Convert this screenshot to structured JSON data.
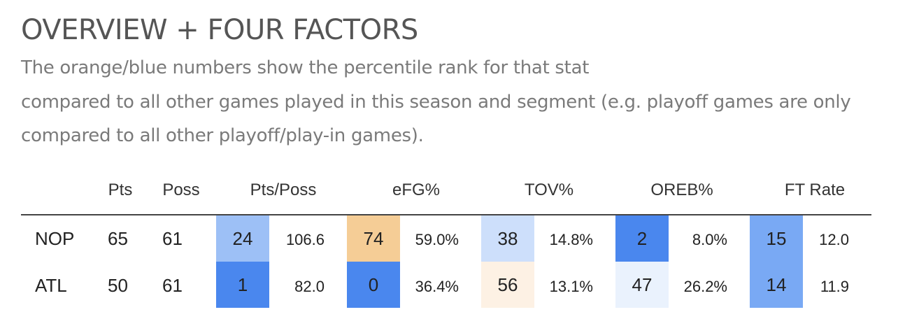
{
  "title": "OVERVIEW + FOUR FACTORS",
  "subtitle_lines": [
    "The orange/blue numbers show the percentile rank for that stat",
    "compared to all other games played in this season and segment (e.g. playoff games are only",
    "compared to all other playoff/play-in games)."
  ],
  "headers": {
    "pts": "Pts",
    "poss": "Poss",
    "pts_poss": "Pts/Poss",
    "efg": "eFG%",
    "tov": "TOV%",
    "oreb": "OREB%",
    "ft_rate": "FT Rate"
  },
  "rows": [
    {
      "team": "NOP",
      "pts": "65",
      "poss": "61",
      "pts_poss": {
        "rank": "24",
        "value": "106.6",
        "color": "#9dc0f6"
      },
      "efg": {
        "rank": "74",
        "value": "59.0%",
        "color": "#f5cd96"
      },
      "tov": {
        "rank": "38",
        "value": "14.8%",
        "color": "#cddffb"
      },
      "oreb": {
        "rank": "2",
        "value": "8.0%",
        "color": "#4a87ee"
      },
      "ft_rate": {
        "rank": "15",
        "value": "12.0",
        "color": "#79a9f4"
      }
    },
    {
      "team": "ATL",
      "pts": "50",
      "poss": "61",
      "pts_poss": {
        "rank": "1",
        "value": "82.0",
        "color": "#4a87ee"
      },
      "efg": {
        "rank": "0",
        "value": "36.4%",
        "color": "#4a87ee"
      },
      "tov": {
        "rank": "56",
        "value": "13.1%",
        "color": "#fdf1e4"
      },
      "oreb": {
        "rank": "47",
        "value": "26.2%",
        "color": "#eaf2fd"
      },
      "ft_rate": {
        "rank": "14",
        "value": "11.9",
        "color": "#79a9f4"
      }
    }
  ]
}
